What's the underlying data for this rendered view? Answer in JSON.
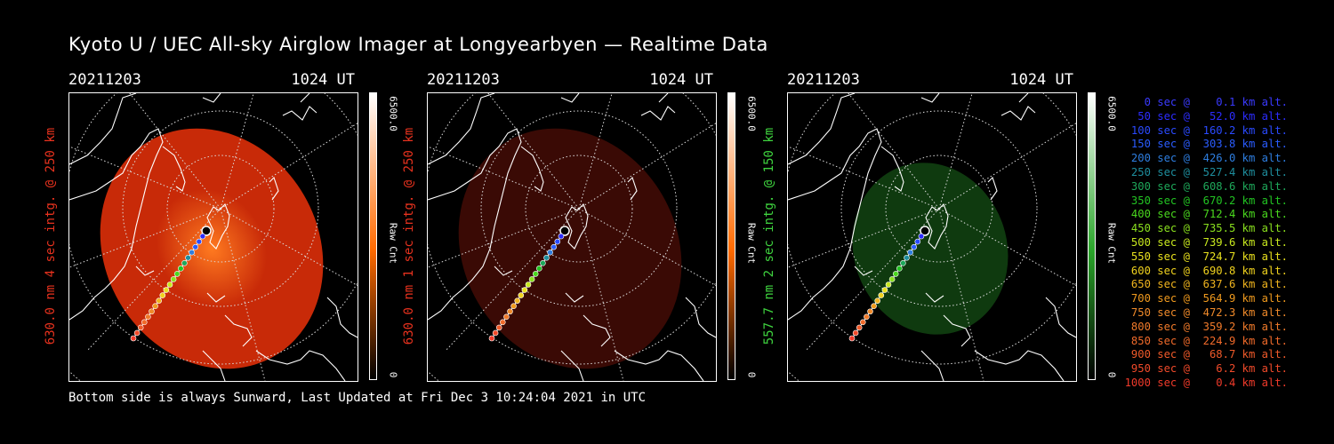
{
  "title": "Kyoto U / UEC All-sky Airglow Imager at Longyearbyen — Realtime Data",
  "footer": "Bottom side is always Sunward, Last Updated at Fri Dec  3 10:24:04 2021 in UTC",
  "panels": [
    {
      "date": "20211203",
      "time": "1024 UT",
      "ylabel": "630.0 nm 4 sec intg. @ 250 km",
      "ylabel_color": "#e8321e",
      "cbar_max": "6500.0",
      "cbar_min": "0",
      "cbar_title": "Raw Cnt",
      "cbar_top": "#ffffff",
      "cbar_mid": "#ff6a00",
      "cbar_bottom": "#000000",
      "image_color": "#c82a08"
    },
    {
      "date": "20211203",
      "time": "1024 UT",
      "ylabel": "630.0 nm 1 sec intg. @ 250 km",
      "ylabel_color": "#e8321e",
      "cbar_max": "6500.0",
      "cbar_min": "0",
      "cbar_title": "Raw Cnt",
      "cbar_top": "#ffffff",
      "cbar_mid": "#ff6a00",
      "cbar_bottom": "#000000",
      "image_color": "#3a0a05"
    },
    {
      "date": "20211203",
      "time": "1024 UT",
      "ylabel": "557.7 nm 2 sec intg. @ 150 km",
      "ylabel_color": "#3fd43f",
      "cbar_max": "6500.0",
      "cbar_min": "0",
      "cbar_title": "Raw Cnt",
      "cbar_top": "#ffffff",
      "cbar_mid": "#2aa52a",
      "cbar_bottom": "#000000",
      "image_color": "#0f3a0f"
    }
  ],
  "legend": [
    {
      "text": "   0 sec @    0.1 km alt.",
      "color": "#3a3aff"
    },
    {
      "text": "  50 sec @   52.0 km alt.",
      "color": "#2c2cff"
    },
    {
      "text": " 100 sec @  160.2 km alt.",
      "color": "#2a4aff"
    },
    {
      "text": " 150 sec @  303.8 km alt.",
      "color": "#2a5cff"
    },
    {
      "text": " 200 sec @  426.0 km alt.",
      "color": "#2e7ee0"
    },
    {
      "text": " 250 sec @  527.4 km alt.",
      "color": "#1e8e9e"
    },
    {
      "text": " 300 sec @  608.6 km alt.",
      "color": "#1ea85a"
    },
    {
      "text": " 350 sec @  670.2 km alt.",
      "color": "#22c422"
    },
    {
      "text": " 400 sec @  712.4 km alt.",
      "color": "#4ad81e"
    },
    {
      "text": " 450 sec @  735.5 km alt.",
      "color": "#8ae01e"
    },
    {
      "text": " 500 sec @  739.6 km alt.",
      "color": "#c8e81e"
    },
    {
      "text": " 550 sec @  724.7 km alt.",
      "color": "#e8e01e"
    },
    {
      "text": " 600 sec @  690.8 km alt.",
      "color": "#f0d21e"
    },
    {
      "text": " 650 sec @  637.6 km alt.",
      "color": "#f0b41e"
    },
    {
      "text": " 700 sec @  564.9 km alt.",
      "color": "#f09a1e"
    },
    {
      "text": " 750 sec @  472.3 km alt.",
      "color": "#f08a2a"
    },
    {
      "text": " 800 sec @  359.2 km alt.",
      "color": "#f07a2a"
    },
    {
      "text": " 850 sec @  224.9 km alt.",
      "color": "#f06a2a"
    },
    {
      "text": " 900 sec @   68.7 km alt.",
      "color": "#f05a2a"
    },
    {
      "text": " 950 sec @    6.2 km alt.",
      "color": "#f04a2a"
    },
    {
      "text": "1000 sec @    0.4 km alt.",
      "color": "#f03a2a"
    }
  ]
}
